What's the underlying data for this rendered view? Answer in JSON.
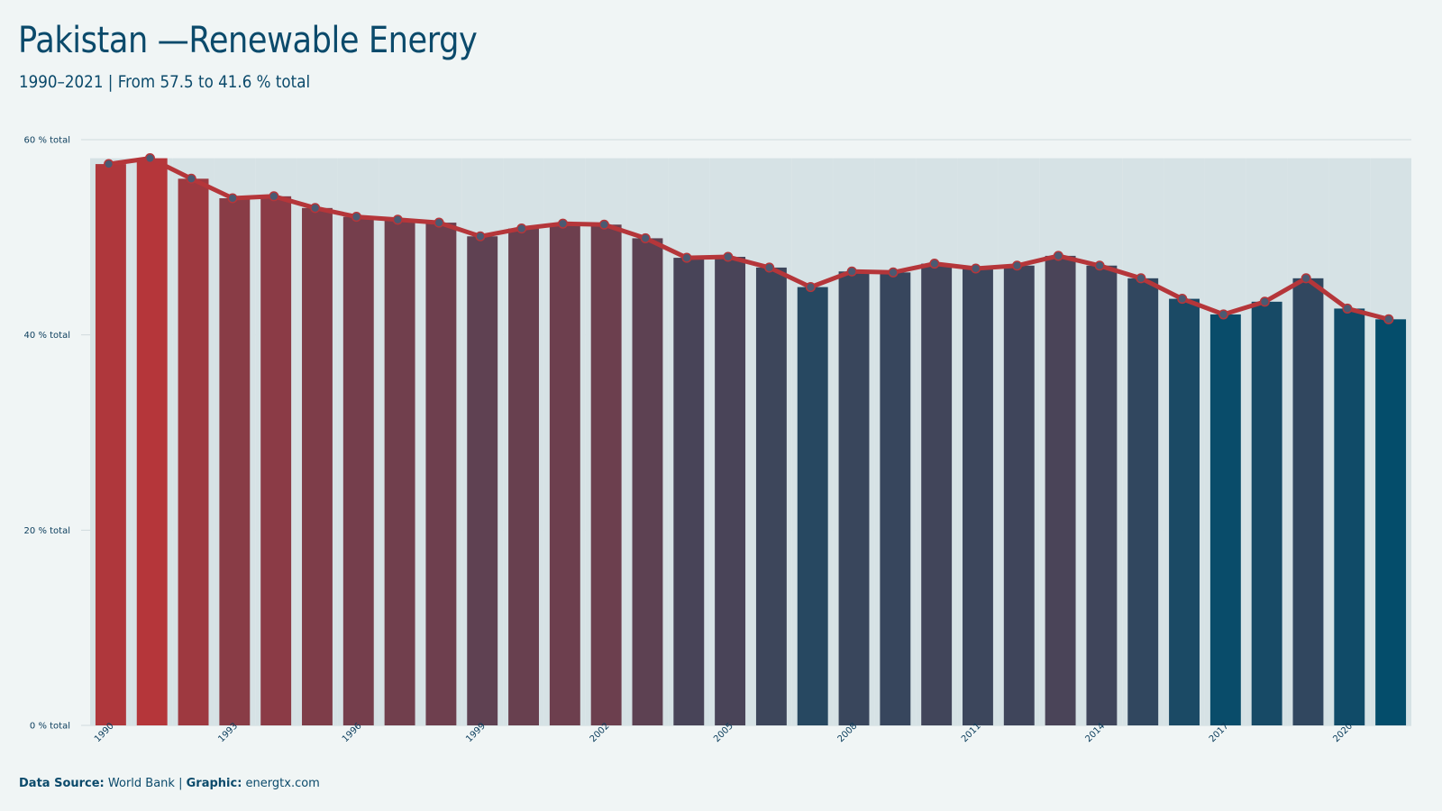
{
  "title": "Pakistan —Renewable Energy",
  "subtitle": "1990–2021 | From 57.5 to 41.6 % total",
  "footer": {
    "source_label": "Data Source:",
    "source_value": "World Bank",
    "separator": "|",
    "graphic_label": "Graphic:",
    "graphic_value": "energtx.com"
  },
  "colors": {
    "high": "#b5363a",
    "low": "#044d6b",
    "line": "#b5363a",
    "marker_fill": "#4a5a72",
    "bar_bg": "#d6e2e5",
    "grid": "#d0dadd"
  },
  "chart_data": {
    "type": "bar",
    "x": [
      1990,
      1991,
      1992,
      1993,
      1994,
      1995,
      1996,
      1997,
      1998,
      1999,
      2000,
      2001,
      2002,
      2003,
      2004,
      2005,
      2006,
      2007,
      2008,
      2009,
      2010,
      2011,
      2012,
      2013,
      2014,
      2015,
      2016,
      2017,
      2018,
      2019,
      2020,
      2021
    ],
    "values": [
      57.5,
      58.1,
      56.0,
      54.0,
      54.2,
      53.0,
      52.1,
      51.8,
      51.5,
      50.1,
      50.9,
      51.4,
      51.3,
      49.9,
      47.9,
      48.0,
      46.9,
      44.9,
      46.5,
      46.4,
      47.3,
      46.8,
      47.1,
      48.1,
      47.1,
      45.8,
      43.7,
      42.1,
      43.4,
      45.8,
      42.7,
      41.6
    ],
    "xticks": [
      1990,
      1993,
      1996,
      1999,
      2002,
      2005,
      2008,
      2011,
      2014,
      2017,
      2020
    ],
    "yticks": [
      0,
      20,
      40,
      60
    ],
    "ytick_labels": [
      "0 % total",
      "20 % total",
      "40 % total",
      "60 % total"
    ],
    "ylim": [
      0,
      60
    ],
    "grid": true,
    "overlay": "line-with-markers"
  }
}
